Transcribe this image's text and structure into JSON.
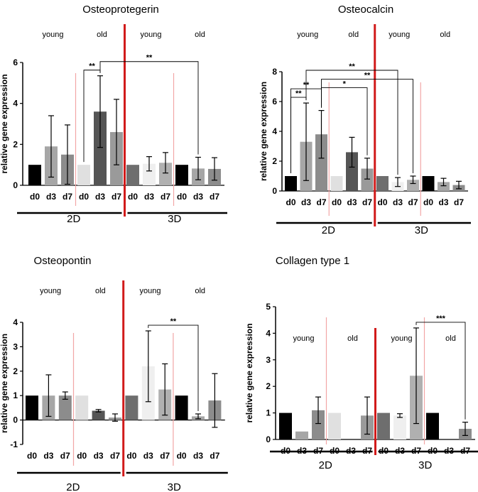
{
  "ylabel": "relative gene expression",
  "group_labels": [
    "young",
    "old",
    "young",
    "old"
  ],
  "section_labels": [
    "2D",
    "3D"
  ],
  "colors": {
    "d0_young": "#000000",
    "d3_young": "#a6a6a6",
    "d7_young": "#8c8c8c",
    "d0_old": "#e0e0e0",
    "d3_old": "#555555",
    "d7_old": "#9a9a9a",
    "d0_3d_young": "#6e6e6e",
    "d3_3d_young": "#efefef",
    "d7_3d_young": "#b0b0b0",
    "divider_main": "#d11a1a",
    "divider_light": "#f2a6a6"
  },
  "chart_data": [
    {
      "type": "bar",
      "title": "Osteoprotegerin",
      "ylabel": "relative gene expression",
      "ylim": [
        0,
        6
      ],
      "yticks": [
        "0",
        "2",
        "4",
        "6"
      ],
      "categories": [
        "d0",
        "d3",
        "d7",
        "d0",
        "d3",
        "d7",
        "d0",
        "d3",
        "d7",
        "d0",
        "d3",
        "d7"
      ],
      "values": [
        1.0,
        1.9,
        1.5,
        1.0,
        3.6,
        2.6,
        1.0,
        1.05,
        1.1,
        1.0,
        0.82,
        0.8
      ],
      "errors": [
        0,
        1.5,
        1.45,
        0,
        1.75,
        1.6,
        0,
        0.35,
        0.5,
        0,
        0.55,
        0.55
      ],
      "significance": [
        {
          "from": 3,
          "to": 4,
          "label": "**"
        },
        {
          "from": 4,
          "to": 10,
          "label": "**"
        }
      ]
    },
    {
      "type": "bar",
      "title": "Osteocalcin",
      "ylabel": "relative gene expression",
      "ylim": [
        0,
        8
      ],
      "yticks": [
        "0",
        "2",
        "4",
        "6",
        "8"
      ],
      "categories": [
        "d0",
        "d3",
        "d7",
        "d0",
        "d3",
        "d7",
        "d0",
        "d3",
        "d7",
        "d0",
        "d3",
        "d7"
      ],
      "values": [
        1.0,
        3.3,
        3.8,
        1.0,
        2.6,
        1.5,
        1.0,
        0.6,
        0.75,
        1.0,
        0.6,
        0.4
      ],
      "errors": [
        0,
        2.6,
        1.6,
        0,
        1.0,
        0.7,
        0,
        0.3,
        0.25,
        0,
        0.25,
        0.25
      ],
      "significance": [
        {
          "from": 0,
          "to": 1,
          "label": "**"
        },
        {
          "from": 0,
          "to": 2,
          "label": "**"
        },
        {
          "from": 2,
          "to": 5,
          "label": "*"
        },
        {
          "from": 2,
          "to": 8,
          "label": "**"
        },
        {
          "from": 1,
          "to": 7,
          "label": "**"
        }
      ]
    },
    {
      "type": "bar",
      "title": "Osteopontin",
      "ylabel": "relative gene expression",
      "ylim": [
        -1,
        4
      ],
      "yticks": [
        "-1",
        "0",
        "1",
        "2",
        "3",
        "4"
      ],
      "categories": [
        "d0",
        "d3",
        "d7",
        "d0",
        "d3",
        "d7",
        "d0",
        "d3",
        "d7",
        "d0",
        "d3",
        "d7"
      ],
      "values": [
        1.0,
        1.0,
        1.0,
        1.0,
        0.38,
        0.1,
        1.0,
        2.2,
        1.25,
        1.0,
        0.15,
        0.8
      ],
      "errors": [
        0,
        0.85,
        0.15,
        0,
        0.05,
        0.15,
        0,
        1.45,
        1.05,
        0,
        0.1,
        1.1
      ],
      "significance": [
        {
          "from": 7,
          "to": 10,
          "label": "**"
        }
      ]
    },
    {
      "type": "bar",
      "title": "Collagen type 1",
      "ylabel": "relative gene expression",
      "ylim": [
        0,
        5
      ],
      "yticks": [
        "0",
        "1",
        "2",
        "3",
        "4",
        "5"
      ],
      "categories": [
        "d0",
        "d3",
        "d7",
        "d0",
        "d3",
        "d7",
        "d0",
        "d3",
        "d7",
        "d0",
        "d3",
        "d7"
      ],
      "values": [
        1.0,
        0.3,
        1.1,
        1.0,
        0.0,
        0.9,
        1.0,
        0.9,
        2.4,
        1.0,
        0.0,
        0.4
      ],
      "errors": [
        0,
        0,
        0.5,
        0,
        0,
        0.7,
        0,
        0.07,
        1.8,
        0,
        0,
        0.25
      ],
      "significance": [
        {
          "from": 8,
          "to": 11,
          "label": "***"
        }
      ]
    }
  ]
}
